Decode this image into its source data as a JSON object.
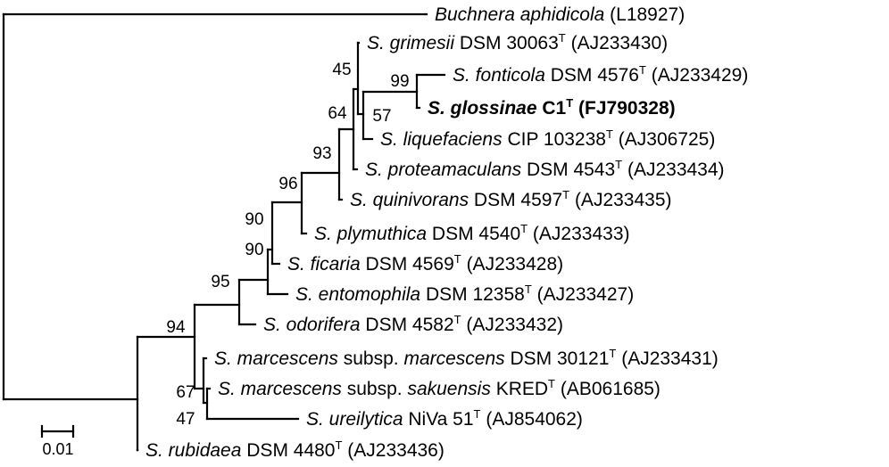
{
  "leaves": [
    {
      "key": "buchnera",
      "genus": "Buchnera aphidicola",
      "strain": "",
      "type_strain": false,
      "accession": "(L18927)",
      "highlight": false
    },
    {
      "key": "grimesii",
      "genus": "S. grimesii",
      "strain": "DSM 30063",
      "type_strain": true,
      "accession": "(AJ233430)",
      "highlight": false
    },
    {
      "key": "fonticola",
      "genus": "S. fonticola",
      "strain": "DSM 4576",
      "type_strain": true,
      "accession": "(AJ233429)",
      "highlight": false
    },
    {
      "key": "glossinae",
      "genus": "S. glossinae",
      "strain": "C1",
      "type_strain": true,
      "accession": "(FJ790328)",
      "highlight": true
    },
    {
      "key": "liquefaciens",
      "genus": "S. liquefaciens",
      "strain": "CIP 103238",
      "type_strain": true,
      "accession": "(AJ306725)",
      "highlight": false
    },
    {
      "key": "proteamaculans",
      "genus": "S. proteamaculans",
      "strain": "DSM 4543",
      "type_strain": true,
      "accession": "(AJ233434)",
      "highlight": false
    },
    {
      "key": "quinivorans",
      "genus": "S. quinivorans",
      "strain": "DSM 4597",
      "type_strain": true,
      "accession": "(AJ233435)",
      "highlight": false
    },
    {
      "key": "plymuthica",
      "genus": "S. plymuthica",
      "strain": "DSM 4540",
      "type_strain": true,
      "accession": "(AJ233433)",
      "highlight": false
    },
    {
      "key": "ficaria",
      "genus": "S. ficaria",
      "strain": "DSM 4569",
      "type_strain": true,
      "accession": "(AJ233428)",
      "highlight": false
    },
    {
      "key": "entomophila",
      "genus": "S. entomophila",
      "strain": "DSM 12358",
      "type_strain": true,
      "accession": "(AJ233427)",
      "highlight": false
    },
    {
      "key": "odorifera",
      "genus": "S. odorifera",
      "strain": "DSM 4582",
      "type_strain": true,
      "accession": "(AJ233432)",
      "highlight": false
    },
    {
      "key": "marcescens",
      "genus": "S. marcescens",
      "subsp_word": "subsp.",
      "subsp": "marcescens",
      "strain": "DSM 30121",
      "type_strain": true,
      "accession": "(AJ233431)",
      "highlight": false
    },
    {
      "key": "sakuensis",
      "genus": "S. marcescens",
      "subsp_word": "subsp.",
      "subsp": "sakuensis",
      "strain": "KRED",
      "type_strain": true,
      "accession": "(AB061685)",
      "highlight": false
    },
    {
      "key": "ureilytica",
      "genus": "S. ureilytica",
      "strain": "NiVa 51",
      "type_strain": true,
      "accession": "(AJ854062)",
      "highlight": false
    },
    {
      "key": "rubidaea",
      "genus": "S. rubidaea",
      "strain": "DSM 4480",
      "type_strain": true,
      "accession": "(AJ233436)",
      "highlight": false
    }
  ],
  "type_marker": "T",
  "bootstrap": [
    {
      "node": "grimesii_clade",
      "value": "45"
    },
    {
      "node": "fonticola_glossinae",
      "value": "99"
    },
    {
      "node": "liquefaciens_clade",
      "value": "57"
    },
    {
      "node": "proteamaculans_clade",
      "value": "64"
    },
    {
      "node": "quinivorans_clade",
      "value": "93"
    },
    {
      "node": "plymuthica_clade",
      "value": "96"
    },
    {
      "node": "ficaria_clade",
      "value": "90"
    },
    {
      "node": "entomophila_clade",
      "value": "90"
    },
    {
      "node": "odorifera_clade",
      "value": "95"
    },
    {
      "node": "marcescens_clade",
      "value": "94"
    },
    {
      "node": "sakuensis_pair",
      "value": "67"
    },
    {
      "node": "ureilytica_clade",
      "value": "47"
    }
  ],
  "scale_bar": {
    "label": "0.01"
  }
}
